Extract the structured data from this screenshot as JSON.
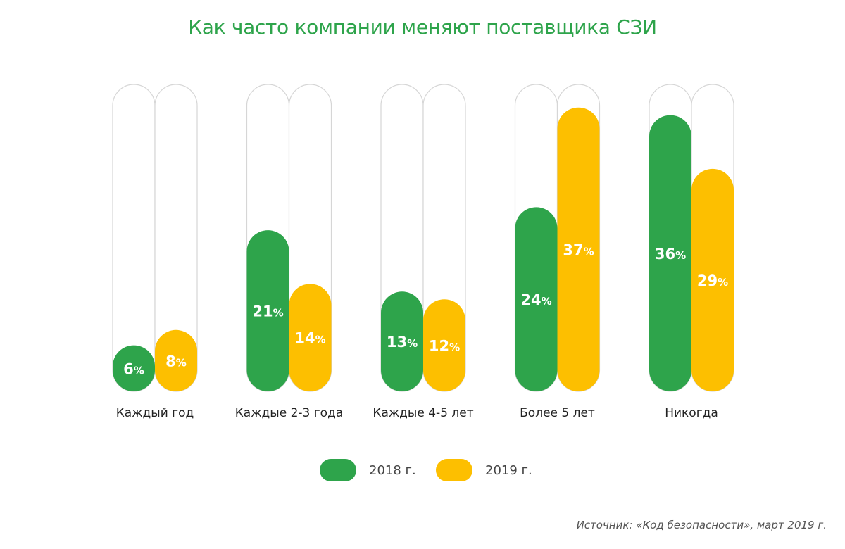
{
  "chart_data": {
    "type": "bar",
    "title": "Как часто компании меняют поставщика СЗИ",
    "categories": [
      "Каждый год",
      "Каждые 2-3 года",
      "Каждые 4-5 лет",
      "Более 5 лет",
      "Никогда"
    ],
    "series": [
      {
        "name": "2018 г.",
        "color": "#2ea44b",
        "values": [
          6,
          21,
          13,
          24,
          36
        ]
      },
      {
        "name": "2019 г.",
        "color": "#fdbf00",
        "values": [
          8,
          14,
          12,
          37,
          29
        ]
      }
    ],
    "value_suffix": "%",
    "ylim": [
      0,
      40
    ],
    "xlabel": "",
    "ylabel": "",
    "grid": false,
    "legend_position": "bottom-center",
    "source": "Источник: «Код безопасности», март 2019 г."
  }
}
